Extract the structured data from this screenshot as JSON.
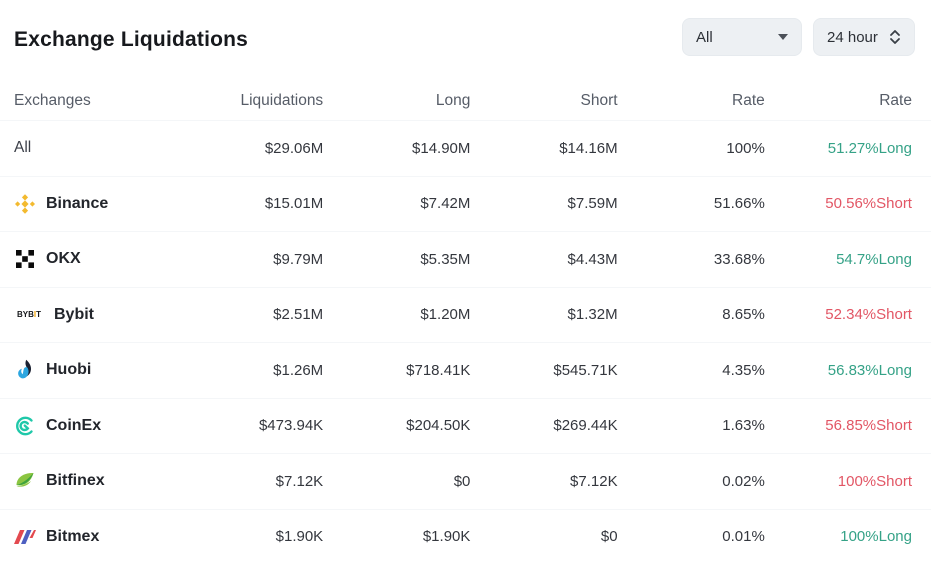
{
  "title": "Exchange Liquidations",
  "filters": {
    "symbol": {
      "value": "All",
      "icon": "caret-down-icon"
    },
    "period": {
      "value": "24 hour",
      "icon": "spinner-updown-icon"
    }
  },
  "colors": {
    "long": "#35a287",
    "short": "#e25665",
    "binance_gold": "#F3BA2F",
    "bybit_orange": "#f7a600"
  },
  "table": {
    "headers": [
      "Exchanges",
      "Liquidations",
      "Long",
      "Short",
      "Rate",
      "Rate"
    ],
    "rows": [
      {
        "exchange": "All",
        "icon": "",
        "liquidations": "$29.06M",
        "long": "$14.90M",
        "short": "$14.16M",
        "rate": "100%",
        "side_rate": "51.27%Long",
        "side": "long"
      },
      {
        "exchange": "Binance",
        "icon": "binance",
        "liquidations": "$15.01M",
        "long": "$7.42M",
        "short": "$7.59M",
        "rate": "51.66%",
        "side_rate": "50.56%Short",
        "side": "short"
      },
      {
        "exchange": "OKX",
        "icon": "okx",
        "liquidations": "$9.79M",
        "long": "$5.35M",
        "short": "$4.43M",
        "rate": "33.68%",
        "side_rate": "54.7%Long",
        "side": "long"
      },
      {
        "exchange": "Bybit",
        "icon": "bybit",
        "liquidations": "$2.51M",
        "long": "$1.20M",
        "short": "$1.32M",
        "rate": "8.65%",
        "side_rate": "52.34%Short",
        "side": "short"
      },
      {
        "exchange": "Huobi",
        "icon": "huobi",
        "liquidations": "$1.26M",
        "long": "$718.41K",
        "short": "$545.71K",
        "rate": "4.35%",
        "side_rate": "56.83%Long",
        "side": "long"
      },
      {
        "exchange": "CoinEx",
        "icon": "coinex",
        "liquidations": "$473.94K",
        "long": "$204.50K",
        "short": "$269.44K",
        "rate": "1.63%",
        "side_rate": "56.85%Short",
        "side": "short"
      },
      {
        "exchange": "Bitfinex",
        "icon": "bitfinex",
        "liquidations": "$7.12K",
        "long": "$0",
        "short": "$7.12K",
        "rate": "0.02%",
        "side_rate": "100%Short",
        "side": "short"
      },
      {
        "exchange": "Bitmex",
        "icon": "bitmex",
        "liquidations": "$1.90K",
        "long": "$1.90K",
        "short": "$0",
        "rate": "0.01%",
        "side_rate": "100%Long",
        "side": "long"
      }
    ]
  }
}
